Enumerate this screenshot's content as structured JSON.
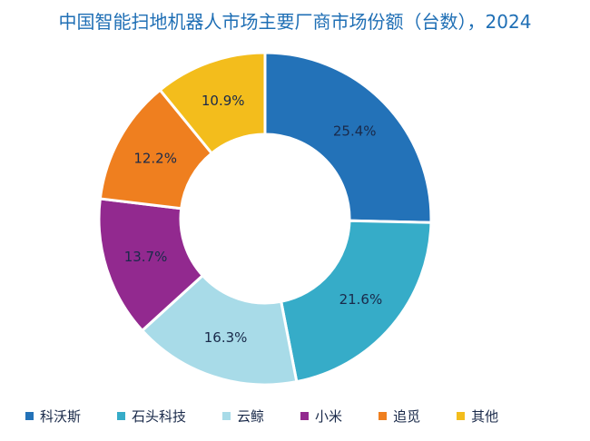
{
  "chart_data": {
    "type": "pie",
    "title": "中国智能扫地机器人市场主要厂商市场份额（台数），2024",
    "donut": true,
    "categories": [
      "科沃斯",
      "石头科技",
      "云鲸",
      "小米",
      "追觅",
      "其他"
    ],
    "values": [
      25.4,
      21.6,
      16.3,
      13.7,
      12.2,
      10.9
    ],
    "labels": [
      "25.4%",
      "21.6%",
      "16.3%",
      "13.7%",
      "12.2%",
      "10.9%"
    ],
    "colors": [
      "#2372b8",
      "#36acc8",
      "#a8dbe8",
      "#92298f",
      "#ef7f1f",
      "#f3bd1c"
    ],
    "legend_position": "bottom"
  }
}
